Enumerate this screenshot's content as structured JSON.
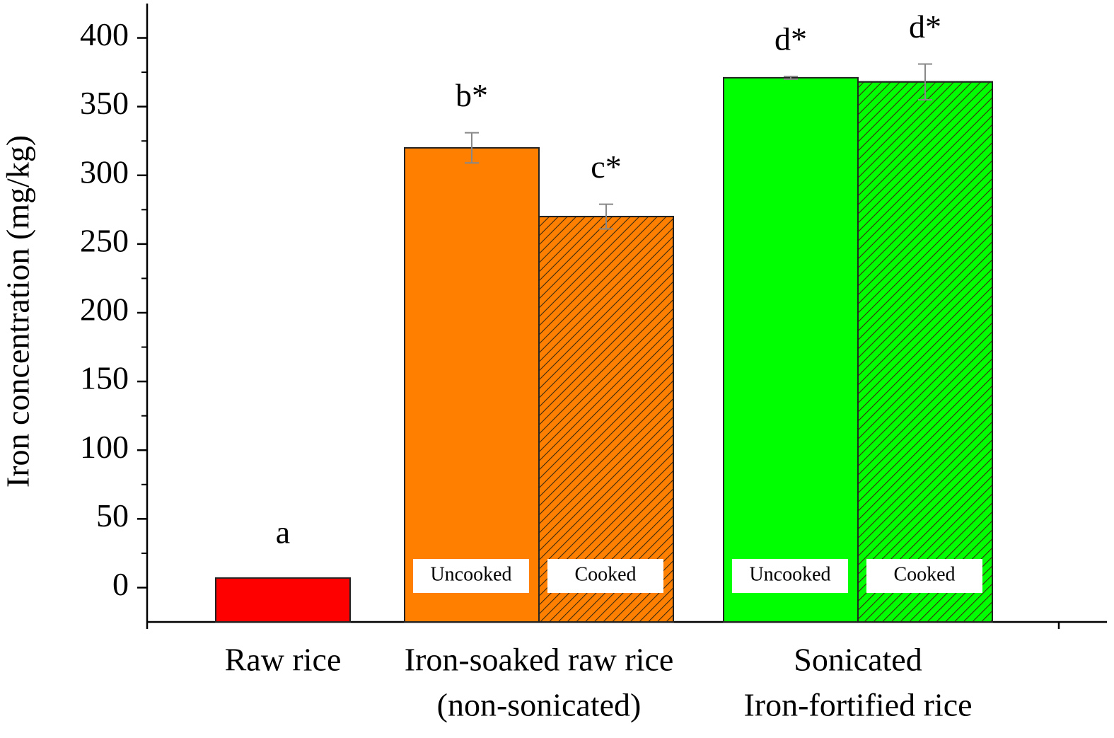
{
  "chart_data": {
    "type": "grouped-bar",
    "y_label": "Iron concentration (mg/kg)",
    "ylim": [
      -25,
      425
    ],
    "yticks": [
      0,
      50,
      100,
      150,
      200,
      250,
      300,
      350,
      400
    ],
    "yminorticks": [
      25,
      75,
      125,
      175,
      225,
      275,
      325,
      375
    ],
    "groups": [
      {
        "label": [
          "Raw rice"
        ],
        "bars": [
          {
            "value": 7,
            "color": "#ff0000",
            "hatch": false,
            "letter": "a"
          }
        ]
      },
      {
        "label": [
          "Iron-soaked raw rice",
          "(non-sonicated)"
        ],
        "bars": [
          {
            "name": "Uncooked",
            "value": 320,
            "error": 11,
            "color": "#ff8000",
            "hatch": false,
            "letter": "b*"
          },
          {
            "name": "Cooked",
            "value": 270,
            "error": 9,
            "color": "#ff8000",
            "hatch": true,
            "letter": "c*"
          }
        ]
      },
      {
        "label": [
          "Sonicated",
          "Iron-fortified rice"
        ],
        "bars": [
          {
            "name": "Uncooked",
            "value": 371,
            "error": 1,
            "color": "#00ff00",
            "hatch": false,
            "letter": "d*"
          },
          {
            "name": "Cooked",
            "value": 368,
            "error": 13,
            "color": "#00ff00",
            "hatch": true,
            "letter": "d*"
          }
        ]
      }
    ]
  }
}
